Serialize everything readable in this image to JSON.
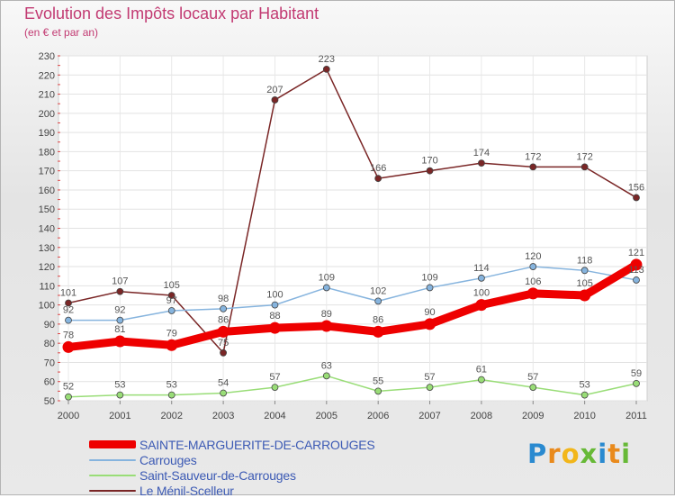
{
  "header": {
    "title": "Evolution des Impôts locaux par Habitant",
    "subtitle": "(en € et par an)"
  },
  "logo": {
    "letters": [
      "P",
      "r",
      "o",
      "x",
      "i",
      "t",
      "i"
    ],
    "colors": [
      "#2a8ad0",
      "#e98a1c",
      "#f2b61a",
      "#67b937",
      "#2a8ad0",
      "#e98a1c",
      "#67b937"
    ]
  },
  "chart_data": {
    "type": "line",
    "x": [
      "2000",
      "2001",
      "2002",
      "2003",
      "2004",
      "2005",
      "2006",
      "2007",
      "2008",
      "2009",
      "2010",
      "2011"
    ],
    "ylim": [
      50,
      230
    ],
    "yticks": [
      50,
      60,
      70,
      80,
      90,
      100,
      110,
      120,
      130,
      140,
      150,
      160,
      170,
      180,
      190,
      200,
      210,
      220,
      230
    ],
    "grid": true,
    "legend_position": "bottom-left",
    "series": [
      {
        "name": "Le Ménil-Scelleur",
        "color": "#7a2626",
        "style": "thin",
        "values": [
          101,
          107,
          105,
          75,
          207,
          223,
          166,
          170,
          174,
          172,
          172,
          156
        ]
      },
      {
        "name": "Saint-Sauveur-de-Carrouges",
        "color": "#99dd77",
        "style": "thin",
        "values": [
          52,
          53,
          53,
          54,
          57,
          63,
          55,
          57,
          61,
          57,
          53,
          59
        ]
      },
      {
        "name": "Carrouges",
        "color": "#86b4de",
        "style": "thin",
        "values": [
          92,
          92,
          97,
          98,
          100,
          109,
          102,
          109,
          114,
          120,
          118,
          113
        ]
      },
      {
        "name": "SAINTE-MARGUERITE-DE-CARROUGES",
        "color": "#ee0000",
        "style": "thick",
        "values": [
          78,
          81,
          79,
          86,
          88,
          89,
          86,
          90,
          100,
          106,
          105,
          121
        ]
      }
    ]
  }
}
